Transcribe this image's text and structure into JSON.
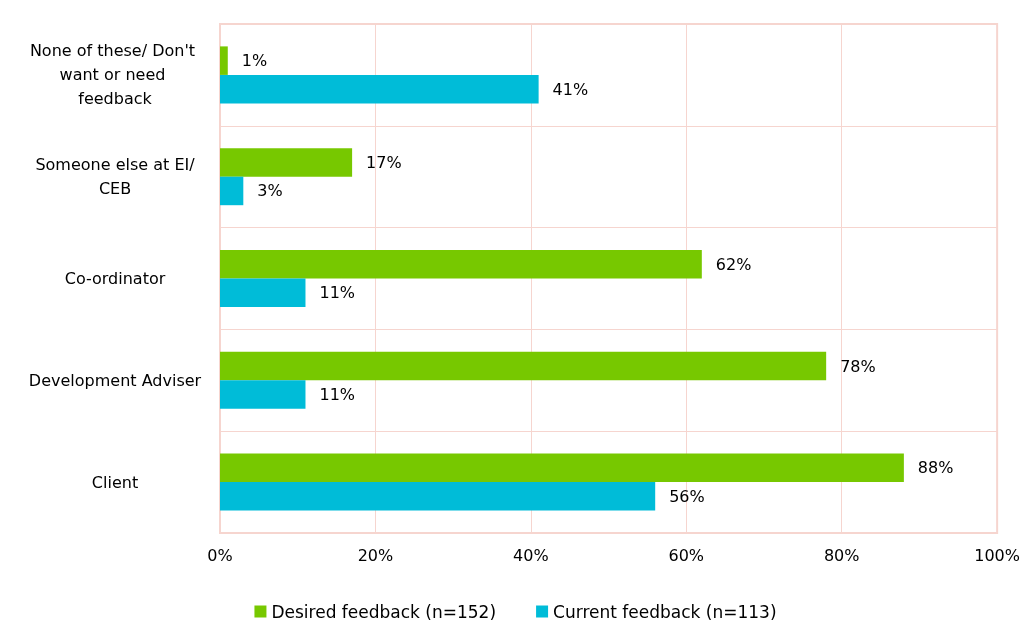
{
  "chart_data": {
    "type": "bar",
    "orientation": "horizontal",
    "categories": [
      "None of these/ Don't want or need feedback",
      "Someone else at EI/CEB",
      "Co-ordinator",
      "Development Adviser",
      "Client"
    ],
    "series": [
      {
        "name": "Desired feedback (n=152)",
        "color": "#77c800",
        "values": [
          1,
          17,
          62,
          78,
          88
        ],
        "value_labels": [
          "1%",
          "17%",
          "62%",
          "78%",
          "88%"
        ]
      },
      {
        "name": "Current feedback (n=113)",
        "color": "#00bcd8",
        "values": [
          41,
          3,
          11,
          11,
          56
        ],
        "value_labels": [
          "41%",
          "3%",
          "11%",
          "11%",
          "56%"
        ]
      }
    ],
    "xlim": [
      0,
      100
    ],
    "xticks": [
      {
        "value": 0,
        "label": "0%"
      },
      {
        "value": 20,
        "label": "20%"
      },
      {
        "value": 40,
        "label": "40%"
      },
      {
        "value": 60,
        "label": "60%"
      },
      {
        "value": 80,
        "label": "80%"
      },
      {
        "value": 100,
        "label": "100%"
      }
    ],
    "grid": true,
    "legend": "bottom"
  }
}
